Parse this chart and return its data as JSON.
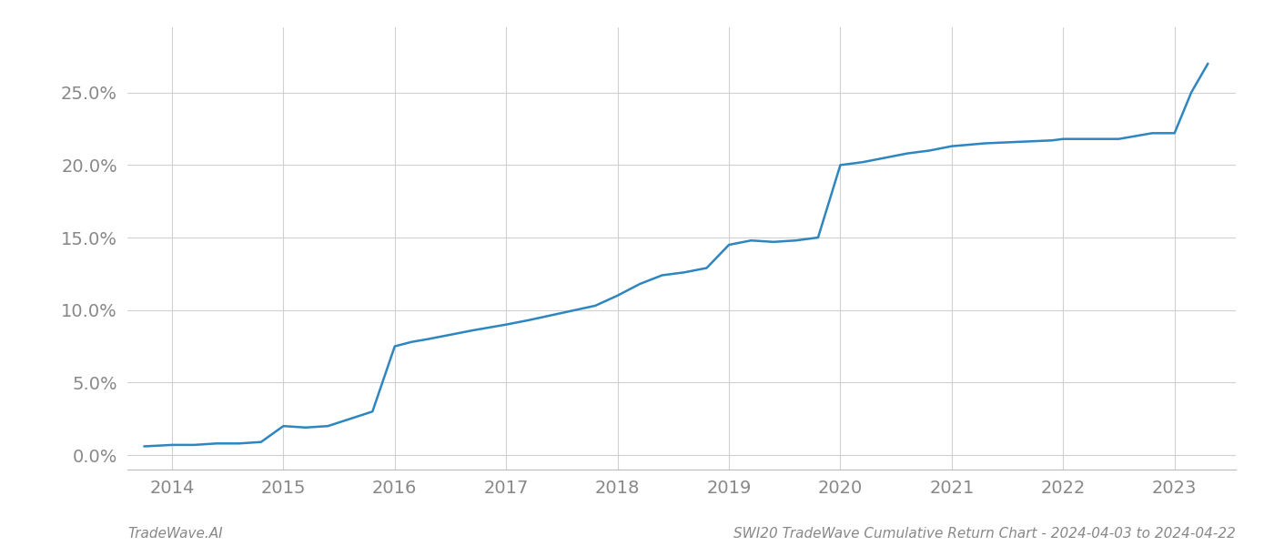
{
  "title": "",
  "footer_left": "TradeWave.AI",
  "footer_right": "SWI20 TradeWave Cumulative Return Chart - 2024-04-03 to 2024-04-22",
  "line_color": "#2e86c0",
  "background_color": "#ffffff",
  "grid_color": "#d0d0d0",
  "x_values": [
    2013.75,
    2014.0,
    2014.2,
    2014.4,
    2014.6,
    2014.8,
    2015.0,
    2015.2,
    2015.4,
    2015.6,
    2015.8,
    2016.0,
    2016.15,
    2016.3,
    2016.5,
    2016.7,
    2017.0,
    2017.2,
    2017.5,
    2017.8,
    2018.0,
    2018.2,
    2018.4,
    2018.6,
    2018.8,
    2019.0,
    2019.2,
    2019.4,
    2019.6,
    2019.8,
    2020.0,
    2020.2,
    2020.4,
    2020.6,
    2020.8,
    2021.0,
    2021.3,
    2021.6,
    2021.9,
    2022.0,
    2022.2,
    2022.5,
    2022.8,
    2023.0,
    2023.15,
    2023.3
  ],
  "y_values": [
    0.006,
    0.007,
    0.007,
    0.008,
    0.008,
    0.009,
    0.02,
    0.019,
    0.02,
    0.025,
    0.03,
    0.075,
    0.078,
    0.08,
    0.083,
    0.086,
    0.09,
    0.093,
    0.098,
    0.103,
    0.11,
    0.118,
    0.124,
    0.126,
    0.129,
    0.145,
    0.148,
    0.147,
    0.148,
    0.15,
    0.2,
    0.202,
    0.205,
    0.208,
    0.21,
    0.213,
    0.215,
    0.216,
    0.217,
    0.218,
    0.218,
    0.218,
    0.222,
    0.222,
    0.25,
    0.27
  ],
  "xlim": [
    2013.6,
    2023.55
  ],
  "ylim": [
    -0.01,
    0.295
  ],
  "yticks": [
    0.0,
    0.05,
    0.1,
    0.15,
    0.2,
    0.25
  ],
  "ytick_labels": [
    "0.0%",
    "5.0%",
    "10.0%",
    "15.0%",
    "20.0%",
    "25.0%"
  ],
  "xticks": [
    2014,
    2015,
    2016,
    2017,
    2018,
    2019,
    2020,
    2021,
    2022,
    2023
  ],
  "xtick_labels": [
    "2014",
    "2015",
    "2016",
    "2017",
    "2018",
    "2019",
    "2020",
    "2021",
    "2022",
    "2023"
  ],
  "line_width": 1.8,
  "tick_label_color": "#888888",
  "footer_fontsize": 11,
  "tick_fontsize": 14
}
